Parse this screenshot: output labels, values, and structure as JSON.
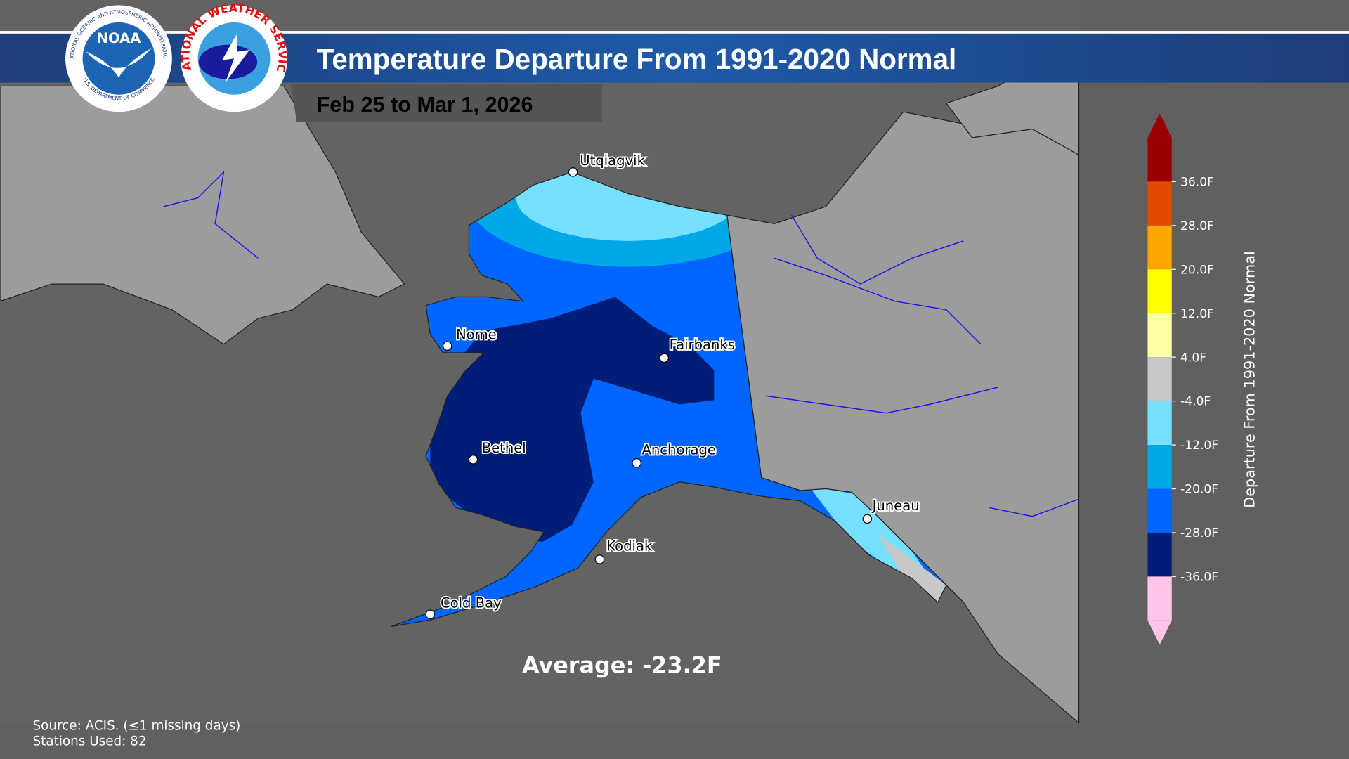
{
  "header": {
    "title": "Temperature Departure From 1991-2020 Normal",
    "subtitle": "Feb 25 to Mar 1, 2026"
  },
  "logos": {
    "noaa": "NOAA",
    "noaa_ring_top": "NATIONAL OCEANIC AND ATMOSPHERIC ADMINISTRATION",
    "noaa_ring_bottom": "U.S. DEPARTMENT OF COMMERCE",
    "nws_ring": "NATIONAL WEATHER SERVICE"
  },
  "cities": [
    "Utqiagvik",
    "Nome",
    "Fairbanks",
    "Bethel",
    "Anchorage",
    "Kodiak",
    "Cold Bay",
    "Juneau"
  ],
  "legend": {
    "label": "Departure From 1991-2020 Normal",
    "ticks": [
      "36.0F",
      "28.0F",
      "20.0F",
      "12.0F",
      "4.0F",
      "-4.0F",
      "-12.0F",
      "-20.0F",
      "-28.0F",
      "-36.0F"
    ],
    "colors": [
      "#9b0000",
      "#e34a00",
      "#ffa600",
      "#ffff00",
      "#ffffa8",
      "#c8c8c8",
      "#75e0ff",
      "#00a8e8",
      "#0066ff",
      "#001e78",
      "#ffc4e8"
    ]
  },
  "average": "Average: -23.2F",
  "source": [
    "Source: ACIS. (≤1 missing days)",
    "Stations Used: 82"
  ]
}
